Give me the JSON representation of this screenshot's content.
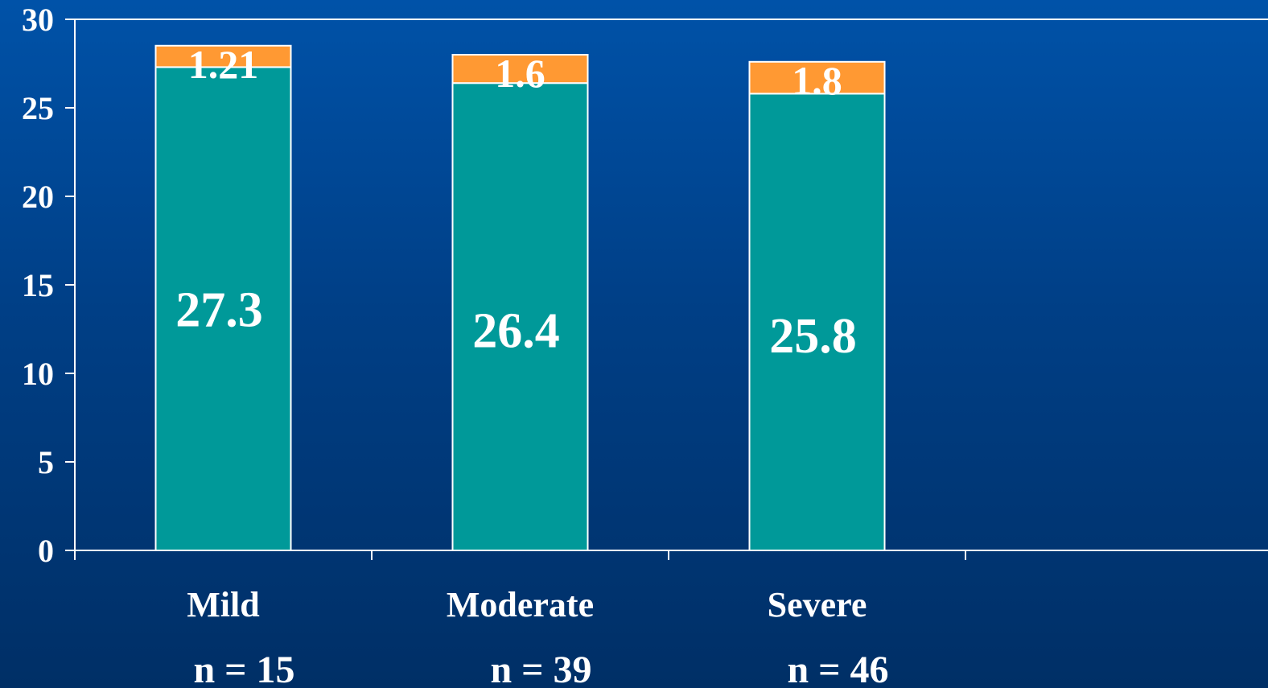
{
  "chart_data": {
    "type": "bar",
    "stacked": true,
    "categories": [
      "Mild",
      "Moderate",
      "Severe"
    ],
    "sample_sizes": [
      "n = 15",
      "n = 39",
      "n = 46"
    ],
    "series": [
      {
        "values": [
          27.3,
          26.4,
          25.8
        ],
        "labels": [
          "27.3",
          "26.4",
          "25.8"
        ],
        "color": "#009999"
      },
      {
        "values": [
          1.21,
          1.6,
          1.8
        ],
        "labels": [
          "1.21",
          "1.6",
          "1.8"
        ],
        "color": "#ff9933"
      }
    ],
    "y_ticks": [
      "0",
      "5",
      "10",
      "15",
      "20",
      "25",
      "30"
    ],
    "ylim": [
      0,
      30
    ],
    "grid": false,
    "legend": "none",
    "title": "",
    "xlabel": "",
    "ylabel": ""
  }
}
